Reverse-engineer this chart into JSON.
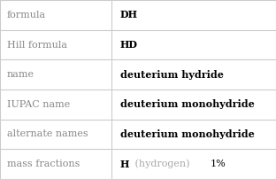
{
  "rows": [
    {
      "label": "formula",
      "value": "DH",
      "value_parts": null
    },
    {
      "label": "Hill formula",
      "value": "HD",
      "value_parts": null
    },
    {
      "label": "name",
      "value": "deuterium hydride",
      "value_parts": null
    },
    {
      "label": "IUPAC name",
      "value": "deuterium monohydride",
      "value_parts": null
    },
    {
      "label": "alternate names",
      "value": "deuterium monohydride",
      "value_parts": null
    },
    {
      "label": "mass fractions",
      "value": null,
      "value_parts": [
        {
          "text": "H",
          "color": "#000000",
          "bold": true
        },
        {
          "text": " (hydrogen) ",
          "color": "#aaaaaa",
          "bold": false
        },
        {
          "text": "1%",
          "color": "#000000",
          "bold": false
        }
      ]
    }
  ],
  "col_split": 0.405,
  "background_color": "#ffffff",
  "border_color": "#cccccc",
  "label_fontsize": 8.0,
  "value_fontsize": 8.0,
  "label_color": "#888888",
  "value_color": "#000000",
  "font_family": "DejaVu Serif"
}
